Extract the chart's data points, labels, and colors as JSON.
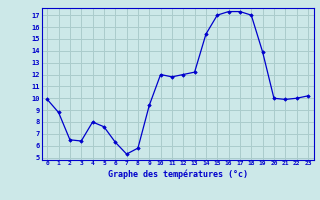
{
  "hours": [
    0,
    1,
    2,
    3,
    4,
    5,
    6,
    7,
    8,
    9,
    10,
    11,
    12,
    13,
    14,
    15,
    16,
    17,
    18,
    19,
    20,
    21,
    22,
    23
  ],
  "temps": [
    9.9,
    8.8,
    6.5,
    6.4,
    8.0,
    7.6,
    6.3,
    5.3,
    5.8,
    9.4,
    12.0,
    11.8,
    12.0,
    12.2,
    15.4,
    17.0,
    17.3,
    17.3,
    17.0,
    13.9,
    10.0,
    9.9,
    10.0,
    10.2
  ],
  "line_color": "#0000cc",
  "marker": "D",
  "marker_size": 1.8,
  "bg_color": "#cce8e8",
  "grid_color": "#aacccc",
  "axis_label_color": "#0000cc",
  "tick_color": "#0000cc",
  "xlabel": "Graphe des températures (°c)",
  "ylim": [
    4.8,
    17.6
  ],
  "yticks": [
    5,
    6,
    7,
    8,
    9,
    10,
    11,
    12,
    13,
    14,
    15,
    16,
    17
  ],
  "xlim": [
    -0.5,
    23.5
  ],
  "xticks": [
    0,
    1,
    2,
    3,
    4,
    5,
    6,
    7,
    8,
    9,
    10,
    11,
    12,
    13,
    14,
    15,
    16,
    17,
    18,
    19,
    20,
    21,
    22,
    23
  ]
}
